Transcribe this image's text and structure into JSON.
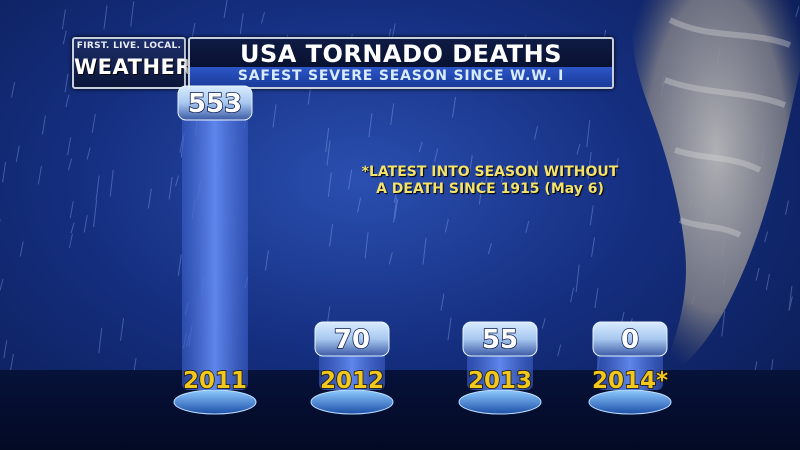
{
  "header": {
    "logo_tagline": "FIRST. LIVE. LOCAL.",
    "logo_word": "WEATHER",
    "title": "USA TORNADO DEATHS",
    "subtitle": "SAFEST SEVERE SEASON SINCE W.W. I"
  },
  "annotation": {
    "line1": "*LATEST INTO SEASON WITHOUT",
    "line2": "A DEATH SINCE 1915 (May 6)"
  },
  "colors": {
    "background": "#152f80",
    "bar": "#5f86ec",
    "cap": "#a8c8f0",
    "value_text": "#ffffff",
    "year_text": "#f2c81e"
  },
  "chart_data": {
    "type": "bar",
    "title": "USA TORNADO DEATHS",
    "subtitle": "SAFEST SEVERE SEASON SINCE W.W. I",
    "categories": [
      "2011",
      "2012",
      "2013",
      "2014*"
    ],
    "values": [
      553,
      70,
      55,
      0
    ],
    "xlabel": "",
    "ylabel": "",
    "grid": false,
    "legend": "none"
  }
}
